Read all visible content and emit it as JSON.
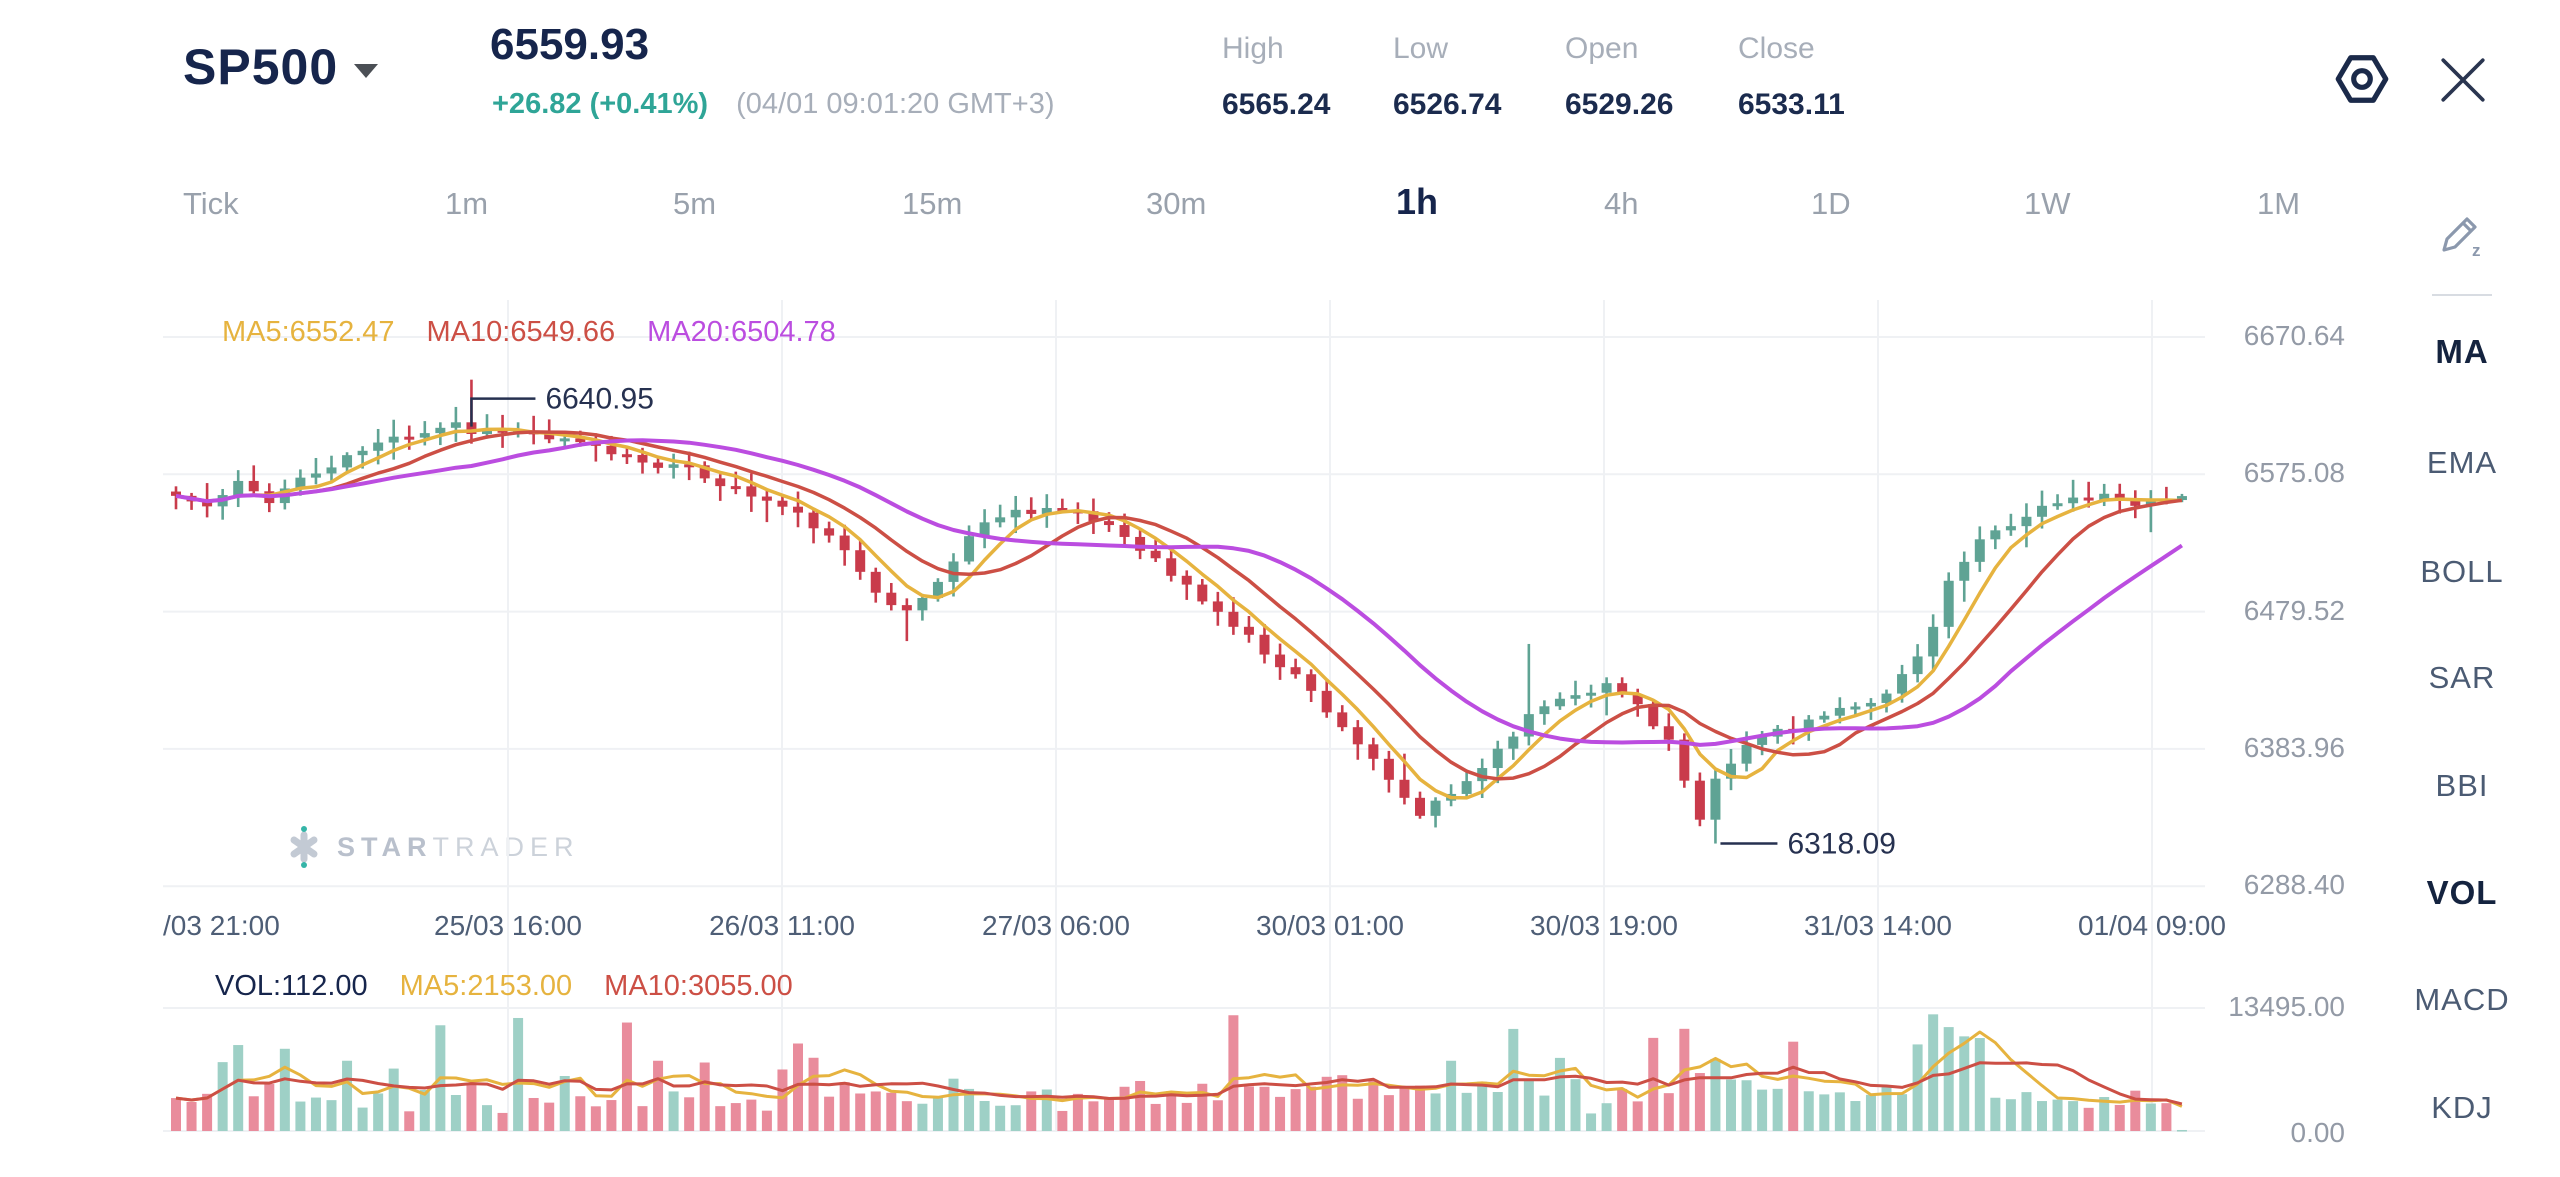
{
  "colors": {
    "navy": "#16254c",
    "muted_gray": "#a7aeb9",
    "teal": "#2fa597",
    "candle_up": "#5fa394",
    "candle_down": "#c93b4b",
    "vol_up": "#9ed0c6",
    "vol_down": "#e98c9c",
    "ma5": "#e6b33f",
    "ma10": "#cc4f45",
    "ma20": "#bb4de0",
    "grid": "#eff1f4",
    "axis_text": "#939aa6",
    "time_text": "#4e5e76",
    "annotation": "#263150",
    "icon_navy": "#1b2a4a",
    "tool_gray": "#8b98ad"
  },
  "header": {
    "symbol": "SP500",
    "price": "6559.93",
    "change": "+26.82 (+0.41%)",
    "timestamp": "(04/01 09:01:20 GMT+3)",
    "stats": [
      {
        "label": "High",
        "value": "6565.24"
      },
      {
        "label": "Low",
        "value": "6526.74"
      },
      {
        "label": "Open",
        "value": "6529.26"
      },
      {
        "label": "Close",
        "value": "6533.11"
      }
    ]
  },
  "timeframes": {
    "items": [
      "Tick",
      "1m",
      "5m",
      "15m",
      "30m",
      "1h",
      "4h",
      "1D",
      "1W",
      "1M"
    ],
    "active": "1h"
  },
  "indicators": {
    "items": [
      "MA",
      "EMA",
      "BOLL",
      "SAR",
      "BBI",
      "VOL",
      "MACD",
      "KDJ"
    ],
    "active": [
      "MA",
      "VOL"
    ]
  },
  "watermark": {
    "bold": "STAR",
    "light": "TRADER"
  },
  "chart_data": {
    "type": "candlestick",
    "symbol": "SP500",
    "interval": "1h",
    "title": "SP500 1h candlestick chart with MA5/MA10/MA20 overlays and volume pane",
    "price_axis": {
      "labels": [
        "6670.64",
        "6575.08",
        "6479.52",
        "6383.96",
        "6288.40"
      ],
      "values": [
        6670.64,
        6575.08,
        6479.52,
        6383.96,
        6288.4
      ]
    },
    "volume_axis": {
      "labels": [
        "13495.00",
        "0.00"
      ],
      "max": 13495
    },
    "time_axis": {
      "first_label": "/03 21:00",
      "labels": [
        "25/03 16:00",
        "26/03 11:00",
        "27/03 06:00",
        "30/03 01:00",
        "30/03 19:00",
        "31/03 14:00",
        "01/04 09:00"
      ]
    },
    "overlay_labels": {
      "price_ma": [
        {
          "name": "MA5",
          "text": "MA5:6552.47"
        },
        {
          "name": "MA10",
          "text": "MA10:6549.66"
        },
        {
          "name": "MA20",
          "text": "MA20:6504.78"
        }
      ],
      "volume": [
        {
          "name": "VOL",
          "text": "VOL:112.00"
        },
        {
          "name": "MA5",
          "text": "MA5:2153.00"
        },
        {
          "name": "MA10",
          "text": "MA10:3055.00"
        }
      ]
    },
    "annotations": [
      {
        "text": "6640.95",
        "value": 6640.95,
        "index": 19,
        "kind": "high"
      },
      {
        "text": "6318.09",
        "value": 6318.09,
        "index": 99,
        "kind": "low"
      }
    ],
    "ohlc_summary": {
      "high": 6565.24,
      "low": 6526.74,
      "open": 6529.26,
      "close": 6533.11
    },
    "last_close": 6559.93,
    "last_volume": 112,
    "candle_count": 130,
    "seed": 11,
    "price_anchors": [
      [
        0,
        6560
      ],
      [
        2,
        6552
      ],
      [
        4,
        6568
      ],
      [
        6,
        6558
      ],
      [
        8,
        6572
      ],
      [
        10,
        6580
      ],
      [
        12,
        6592
      ],
      [
        14,
        6600
      ],
      [
        16,
        6606
      ],
      [
        18,
        6612
      ],
      [
        19,
        6604
      ],
      [
        21,
        6607
      ],
      [
        24,
        6600
      ],
      [
        27,
        6593
      ],
      [
        30,
        6585
      ],
      [
        33,
        6578
      ],
      [
        36,
        6565
      ],
      [
        39,
        6552
      ],
      [
        41,
        6540
      ],
      [
        43,
        6520
      ],
      [
        45,
        6496
      ],
      [
        47,
        6478
      ],
      [
        49,
        6500
      ],
      [
        51,
        6532
      ],
      [
        53,
        6548
      ],
      [
        56,
        6552
      ],
      [
        58,
        6546
      ],
      [
        60,
        6540
      ],
      [
        62,
        6525
      ],
      [
        64,
        6505
      ],
      [
        66,
        6488
      ],
      [
        68,
        6470
      ],
      [
        70,
        6452
      ],
      [
        72,
        6435
      ],
      [
        74,
        6412
      ],
      [
        76,
        6388
      ],
      [
        78,
        6360
      ],
      [
        80,
        6338
      ],
      [
        82,
        6352
      ],
      [
        84,
        6372
      ],
      [
        86,
        6396
      ],
      [
        88,
        6415
      ],
      [
        90,
        6424
      ],
      [
        92,
        6428
      ],
      [
        94,
        6415
      ],
      [
        96,
        6390
      ],
      [
        98,
        6332
      ],
      [
        99,
        6360
      ],
      [
        101,
        6386
      ],
      [
        103,
        6398
      ],
      [
        106,
        6406
      ],
      [
        108,
        6412
      ],
      [
        110,
        6425
      ],
      [
        112,
        6445
      ],
      [
        113,
        6470
      ],
      [
        114,
        6498
      ],
      [
        115,
        6515
      ],
      [
        116,
        6528
      ],
      [
        118,
        6542
      ],
      [
        120,
        6552
      ],
      [
        122,
        6558
      ],
      [
        124,
        6560
      ],
      [
        126,
        6556
      ],
      [
        128,
        6558
      ],
      [
        129,
        6559.93
      ]
    ],
    "wick_overrides": [
      {
        "i": 19,
        "high": 6640.95
      },
      {
        "i": 99,
        "low": 6318.09
      },
      {
        "i": 87,
        "high": 6457
      },
      {
        "i": 47,
        "low": 6459
      }
    ],
    "volume_spikes": [
      {
        "i": 17,
        "v": 11600
      },
      {
        "i": 22,
        "v": 12400
      },
      {
        "i": 29,
        "v": 11900
      },
      {
        "i": 40,
        "v": 9600
      },
      {
        "i": 68,
        "v": 12700
      },
      {
        "i": 86,
        "v": 11200
      },
      {
        "i": 104,
        "v": 9800
      },
      {
        "i": 112,
        "v": 9500
      },
      {
        "i": 113,
        "v": 12800
      },
      {
        "i": 114,
        "v": 11400
      },
      {
        "i": 116,
        "v": 10200
      }
    ]
  }
}
